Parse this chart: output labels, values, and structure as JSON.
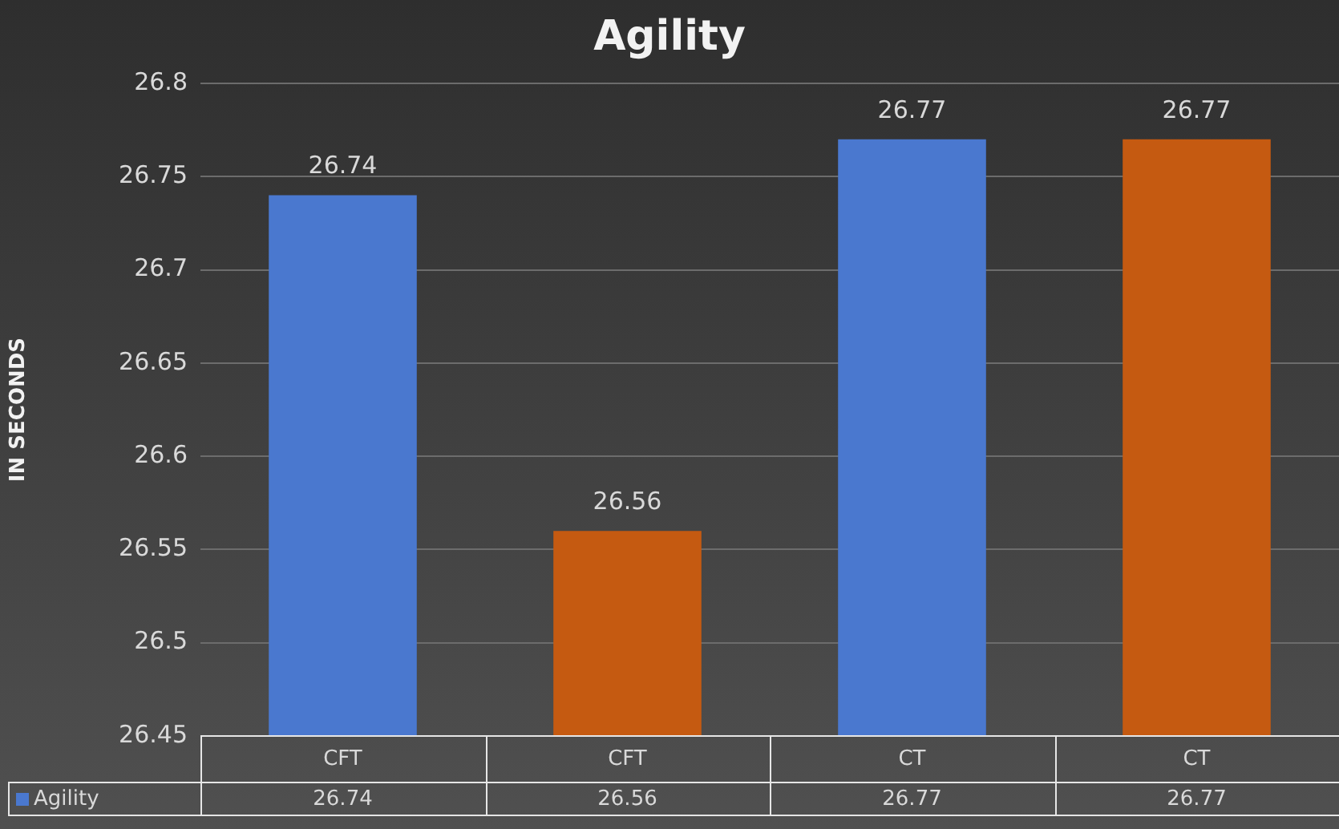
{
  "chart_data": {
    "type": "bar",
    "title": "Agility",
    "ylabel": "IN SECONDS",
    "categories": [
      "CFT",
      "CFT",
      "CT",
      "CT"
    ],
    "series": [
      {
        "name": "Agility",
        "color": "#4a78cf",
        "colors": [
          "#4a78cf",
          "#c55a11",
          "#4a78cf",
          "#c55a11"
        ],
        "values": [
          26.74,
          26.56,
          26.77,
          26.77
        ],
        "value_labels": [
          "26.74",
          "26.56",
          "26.77",
          "26.77"
        ]
      }
    ],
    "ylim": [
      26.45,
      26.8
    ],
    "yticks": [
      26.45,
      26.5,
      26.55,
      26.6,
      26.65,
      26.7,
      26.75,
      26.8
    ],
    "grid": "y",
    "legend": "bottom",
    "annotations": [
      "26.74",
      "26.56",
      "26.77",
      "26.77"
    ]
  }
}
